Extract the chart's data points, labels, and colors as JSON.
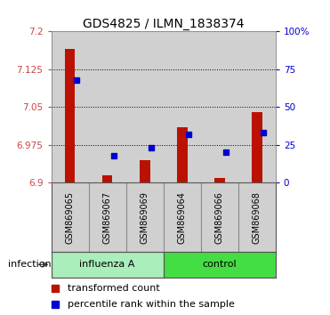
{
  "title": "GDS4825 / ILMN_1838374",
  "samples": [
    "GSM869065",
    "GSM869067",
    "GSM869069",
    "GSM869064",
    "GSM869066",
    "GSM869068"
  ],
  "group_labels": [
    "influenza A",
    "control"
  ],
  "group_split": 3,
  "red_values": [
    7.165,
    6.915,
    6.945,
    7.01,
    6.91,
    7.04
  ],
  "blue_values_pct": [
    68,
    18,
    23,
    32,
    20,
    33
  ],
  "ylim": [
    6.9,
    7.2
  ],
  "yticks": [
    6.9,
    6.975,
    7.05,
    7.125,
    7.2
  ],
  "right_yticks": [
    0,
    25,
    50,
    75,
    100
  ],
  "right_ytick_labels": [
    "0",
    "25",
    "50",
    "75",
    "100%"
  ],
  "bar_color": "#bb1100",
  "dot_color": "#0000cc",
  "infection_label": "infection",
  "legend_red": "transformed count",
  "legend_blue": "percentile rank within the sample",
  "background_color": "#ffffff",
  "plot_bg": "#ffffff",
  "col_bg": "#d0d0d0",
  "group_bg_light": "#aaeebb",
  "group_bg_dark": "#44dd44",
  "left_tick_color": "#cc4444",
  "right_tick_color": "#0000cc",
  "title_fontsize": 10,
  "tick_fontsize": 7.5,
  "legend_fontsize": 8,
  "base_value": 6.9
}
